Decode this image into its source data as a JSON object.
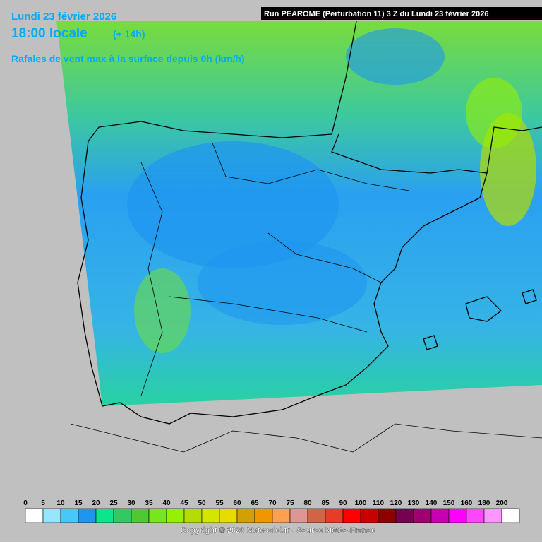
{
  "header": {
    "date": "Lundi 23 février 2026",
    "time": "18:00 locale",
    "offset": "(+ 14h)",
    "parameter": "Rafales de vent max à la surface depuis 0h (km/h)",
    "run": "Run PEAROME (Perturbation 11) 3 Z du Lundi 23 février 2026"
  },
  "legend": {
    "values": [
      0,
      5,
      10,
      15,
      20,
      25,
      30,
      35,
      40,
      45,
      50,
      55,
      60,
      65,
      70,
      75,
      80,
      85,
      90,
      100,
      110,
      120,
      130,
      140,
      150,
      160,
      180,
      200
    ],
    "colors": [
      "#ffffff",
      "#96e6ff",
      "#46c8fa",
      "#1e96f0",
      "#0ae68c",
      "#32c864",
      "#50c832",
      "#78e61e",
      "#96f000",
      "#b4dc00",
      "#d2e600",
      "#e6dc00",
      "#d2a000",
      "#f09600",
      "#ffa050",
      "#dc9696",
      "#d26446",
      "#e63c28",
      "#ff0000",
      "#c80000",
      "#8c0000",
      "#780050",
      "#a0006e",
      "#c800b4",
      "#ff00ff",
      "#ff46ff",
      "#ff96ff",
      "#ffffff"
    ]
  },
  "footer": {
    "copyright": "Copyright © 2026 Meteociel.fr - Source Météo-France"
  }
}
